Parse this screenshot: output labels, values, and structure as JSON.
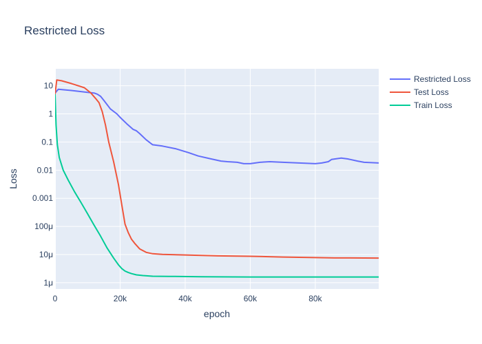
{
  "chart_data": {
    "type": "line",
    "title": "Restricted Loss",
    "xlabel": "epoch",
    "ylabel": "Loss",
    "xlim": [
      0,
      99500
    ],
    "ylim": [
      6e-07,
      40
    ],
    "yscale": "log",
    "grid": true,
    "legend_position": "top-right outside",
    "x_ticks": [
      {
        "value": 0,
        "label": "0"
      },
      {
        "value": 20000,
        "label": "20k"
      },
      {
        "value": 40000,
        "label": "40k"
      },
      {
        "value": 60000,
        "label": "60k"
      },
      {
        "value": 80000,
        "label": "80k"
      }
    ],
    "y_ticks": [
      {
        "value": 10,
        "label": "10"
      },
      {
        "value": 1,
        "label": "1"
      },
      {
        "value": 0.1,
        "label": "0.1"
      },
      {
        "value": 0.01,
        "label": "0.01"
      },
      {
        "value": 0.001,
        "label": "0.001"
      },
      {
        "value": 0.0001,
        "label": "100μ"
      },
      {
        "value": 1e-05,
        "label": "10μ"
      },
      {
        "value": 1e-06,
        "label": "1μ"
      }
    ],
    "series": [
      {
        "name": "Restricted Loss",
        "color": "#636efa",
        "x": [
          0,
          1000,
          5000,
          10000,
          12000,
          13000,
          14000,
          15000,
          17000,
          19000,
          20000,
          22000,
          24000,
          25000,
          26000,
          28000,
          30000,
          33000,
          37000,
          41000,
          44000,
          48000,
          51000,
          53000,
          56000,
          58000,
          60000,
          63000,
          66000,
          70000,
          75000,
          80000,
          82000,
          84000,
          85000,
          87000,
          88000,
          90000,
          93000,
          95000,
          99500
        ],
        "y": [
          5.5,
          7.5,
          6.8,
          5.8,
          5.5,
          5.0,
          4.2,
          3.0,
          1.5,
          1.0,
          0.75,
          0.45,
          0.28,
          0.25,
          0.2,
          0.12,
          0.08,
          0.072,
          0.058,
          0.042,
          0.032,
          0.025,
          0.021,
          0.02,
          0.019,
          0.017,
          0.017,
          0.019,
          0.02,
          0.019,
          0.018,
          0.017,
          0.018,
          0.02,
          0.024,
          0.026,
          0.027,
          0.025,
          0.021,
          0.019,
          0.018
        ]
      },
      {
        "name": "Test Loss",
        "color": "#ef553b",
        "x": [
          0,
          500,
          2000,
          5000,
          9000,
          11000,
          12500,
          13500,
          14500,
          15500,
          16500,
          18000,
          19500,
          20500,
          21500,
          22500,
          23500,
          24500,
          26000,
          28000,
          30000,
          33000,
          40000,
          50000,
          60000,
          70000,
          80000,
          86000,
          90000,
          99500
        ],
        "y": [
          5,
          16,
          15,
          12,
          8.5,
          5.5,
          3.5,
          2.5,
          1.2,
          0.4,
          0.1,
          0.02,
          0.003,
          0.0006,
          0.00012,
          6e-05,
          3.5e-05,
          2.5e-05,
          1.6e-05,
          1.2e-05,
          1.07e-05,
          1.02e-05,
          9.7e-06,
          9e-06,
          8.7e-06,
          8.2e-06,
          7.8e-06,
          7.6e-06,
          7.6e-06,
          7.5e-06
        ]
      },
      {
        "name": "Train Loss",
        "color": "#00cc96",
        "x": [
          0,
          300,
          700,
          1300,
          2500,
          4000,
          6000,
          8000,
          10000,
          12000,
          14000,
          16000,
          18000,
          19500,
          20500,
          21500,
          22500,
          23500,
          25000,
          27000,
          30000,
          35000,
          45000,
          60000,
          80000,
          99500
        ],
        "y": [
          5,
          0.4,
          0.08,
          0.028,
          0.01,
          0.0045,
          0.0017,
          0.0007,
          0.00028,
          0.00011,
          4.5e-05,
          1.7e-05,
          7.5e-06,
          4.3e-06,
          3.2e-06,
          2.6e-06,
          2.3e-06,
          2.1e-06,
          1.9e-06,
          1.8e-06,
          1.7e-06,
          1.68e-06,
          1.63e-06,
          1.6e-06,
          1.6e-06,
          1.6e-06
        ]
      }
    ]
  }
}
